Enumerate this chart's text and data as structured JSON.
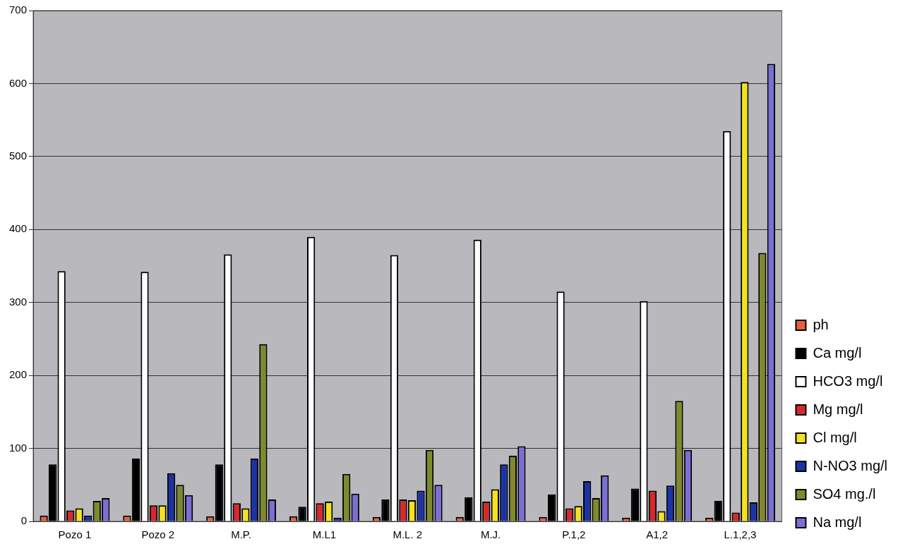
{
  "chart_data": {
    "type": "bar",
    "categories": [
      "Pozo 1",
      "Pozo 2",
      "M.P.",
      "M.L1",
      "M.L. 2",
      "M.J.",
      "P.1,2",
      "A1,2",
      "L.1,2,3"
    ],
    "series": [
      {
        "name": "ph",
        "color": "#e8603c",
        "values": [
          8,
          8,
          7,
          7,
          6,
          6,
          6,
          5,
          5
        ]
      },
      {
        "name": "Ca mg/l",
        "color": "#000000",
        "values": [
          78,
          86,
          78,
          20,
          30,
          33,
          37,
          45,
          28
        ]
      },
      {
        "name": "HCO3 mg/l",
        "color": "#ffffff",
        "values": [
          343,
          342,
          366,
          390,
          365,
          386,
          315,
          302,
          535
        ]
      },
      {
        "name": "Mg mg/l",
        "color": "#d9282a",
        "values": [
          15,
          22,
          25,
          25,
          30,
          27,
          18,
          42,
          12
        ]
      },
      {
        "name": "Cl mg/l",
        "color": "#f5e21c",
        "values": [
          18,
          22,
          18,
          27,
          29,
          44,
          21,
          14,
          602
        ]
      },
      {
        "name": "N-NO3 mg/l",
        "color": "#1a33a8",
        "values": [
          8,
          66,
          86,
          5,
          42,
          78,
          55,
          49,
          26
        ]
      },
      {
        "name": "SO4 mg./l",
        "color": "#7f8a2a",
        "values": [
          28,
          50,
          243,
          65,
          98,
          90,
          32,
          165,
          368
        ]
      },
      {
        "name": "Na mg/l",
        "color": "#7a6fd6",
        "values": [
          32,
          36,
          30,
          38,
          50,
          103,
          63,
          98,
          627
        ]
      }
    ],
    "ylim": [
      0,
      700
    ],
    "yticks": [
      0,
      100,
      200,
      300,
      400,
      500,
      600,
      700
    ],
    "grid": "y",
    "legend": "right"
  }
}
